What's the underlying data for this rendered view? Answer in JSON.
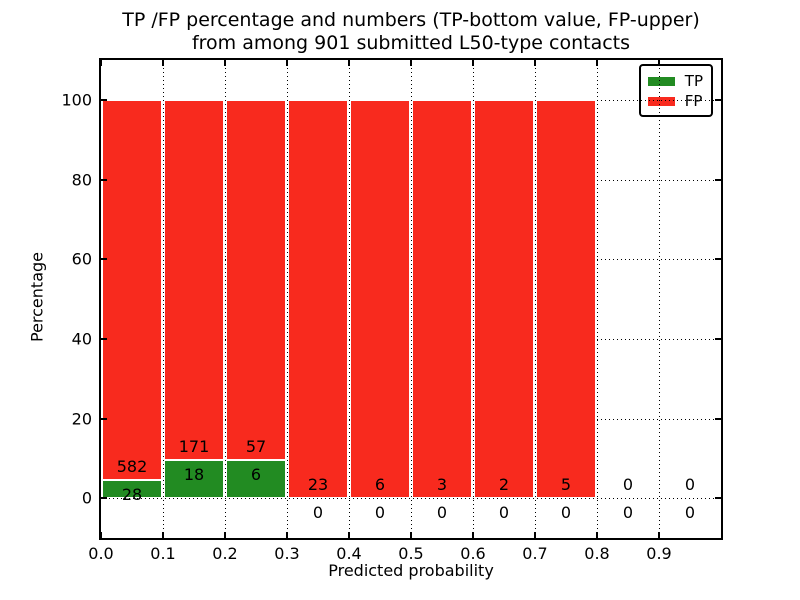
{
  "chart_data": {
    "type": "bar",
    "stacked": true,
    "title_line1": "TP /FP percentage and numbers (TP-bottom value, FP-upper)",
    "title_line2": "from among 901 submitted L50-type contacts",
    "xlabel": "Predicted probability",
    "ylabel": "Percentage",
    "total_contacts": 901,
    "categories": [
      "0.0-0.1",
      "0.1-0.2",
      "0.2-0.3",
      "0.3-0.4",
      "0.4-0.5",
      "0.5-0.6",
      "0.6-0.7",
      "0.7-0.8",
      "0.8-0.9",
      "0.9-1.0"
    ],
    "series": [
      {
        "name": "TP",
        "color": "#228b22",
        "values": [
          28,
          18,
          6,
          0,
          0,
          0,
          0,
          0,
          0,
          0
        ]
      },
      {
        "name": "FP",
        "color": "#f82a1e",
        "values": [
          582,
          171,
          57,
          23,
          6,
          3,
          2,
          5,
          0,
          0
        ]
      }
    ],
    "bar_total_height_percent": 100,
    "xticks": [
      "0.0",
      "0.1",
      "0.2",
      "0.3",
      "0.4",
      "0.5",
      "0.6",
      "0.7",
      "0.8",
      "0.9"
    ],
    "yticks": [
      "0",
      "20",
      "40",
      "60",
      "80",
      "100"
    ],
    "xlim": [
      0.0,
      1.0
    ],
    "ylim": [
      -10,
      110
    ],
    "grid": {
      "style": "dotted",
      "color": "#000000"
    },
    "legend": {
      "position": "upper right",
      "entries": [
        {
          "label": "TP",
          "color": "#228b22"
        },
        {
          "label": "FP",
          "color": "#f82a1e"
        }
      ]
    },
    "colors": {
      "tp": "#228b22",
      "fp": "#f82a1e",
      "background": "#ffffff",
      "axis": "#000000"
    }
  }
}
